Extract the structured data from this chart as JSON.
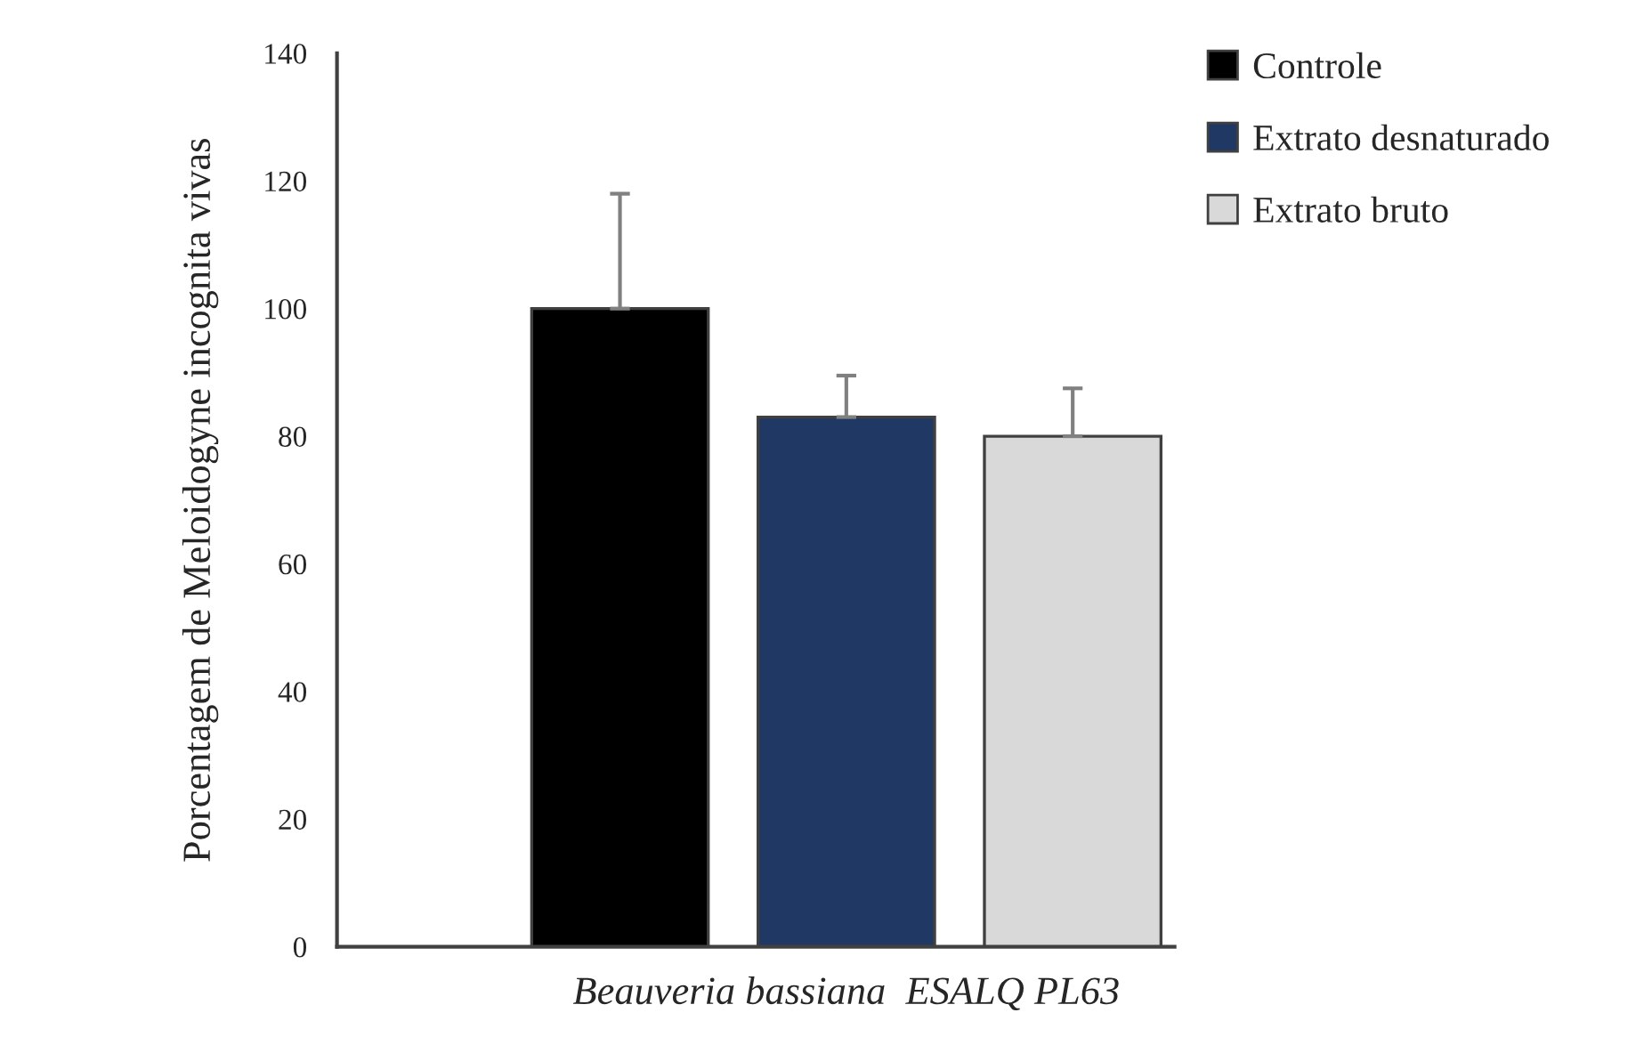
{
  "chart_data": {
    "type": "bar",
    "xlabel": null,
    "ylabel": "Porcentagem de Meloidogyne incognita vivas",
    "categories": [
      "Beauveria bassiana  ESALQ PL63"
    ],
    "series": [
      {
        "name": "Controle",
        "color": "#000000",
        "values": [
          100
        ],
        "errors": [
          [
            100,
            118
          ]
        ]
      },
      {
        "name": "Extrato desnaturado",
        "color": "#203864",
        "values": [
          83
        ],
        "errors": [
          [
            83,
            89.5
          ]
        ]
      },
      {
        "name": "Extrato bruto",
        "color": "#d9d9d9",
        "values": [
          80
        ],
        "errors": [
          [
            80,
            87.5
          ]
        ]
      }
    ],
    "ylim": [
      0,
      140
    ],
    "yticks": [
      0,
      20,
      40,
      60,
      80,
      100,
      120,
      140
    ],
    "grid": false,
    "legend": "top right"
  }
}
